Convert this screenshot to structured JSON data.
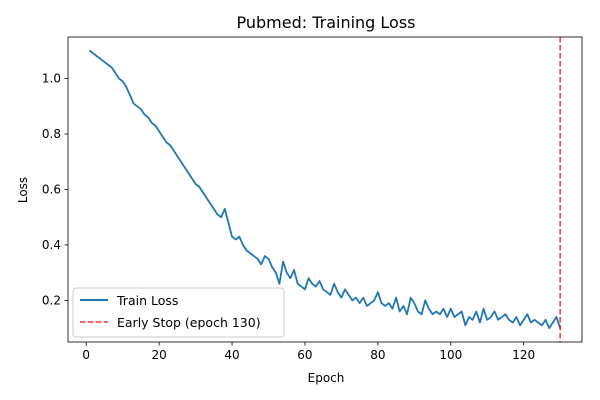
{
  "chart_data": {
    "type": "line",
    "title": "Pubmed: Training Loss",
    "xlabel": "Epoch",
    "ylabel": "Loss",
    "xlim": [
      -5,
      136
    ],
    "ylim": [
      0.05,
      1.15
    ],
    "xticks": [
      0,
      20,
      40,
      60,
      80,
      100,
      120
    ],
    "yticks": [
      0.2,
      0.4,
      0.6,
      0.8,
      1.0
    ],
    "ytick_labels": [
      "0.2",
      "0.4",
      "0.6",
      "0.8",
      "1.0"
    ],
    "grid": false,
    "legend_position": "lower-left",
    "series": [
      {
        "name": "Train Loss",
        "color": "#1f77b4",
        "style": "solid",
        "x": [
          1,
          2,
          3,
          4,
          5,
          6,
          7,
          8,
          9,
          10,
          11,
          12,
          13,
          14,
          15,
          16,
          17,
          18,
          19,
          20,
          21,
          22,
          23,
          24,
          25,
          26,
          27,
          28,
          29,
          30,
          31,
          32,
          33,
          34,
          35,
          36,
          37,
          38,
          39,
          40,
          41,
          42,
          43,
          44,
          45,
          46,
          47,
          48,
          49,
          50,
          51,
          52,
          53,
          54,
          55,
          56,
          57,
          58,
          59,
          60,
          61,
          62,
          63,
          64,
          65,
          66,
          67,
          68,
          69,
          70,
          71,
          72,
          73,
          74,
          75,
          76,
          77,
          78,
          79,
          80,
          81,
          82,
          83,
          84,
          85,
          86,
          87,
          88,
          89,
          90,
          91,
          92,
          93,
          94,
          95,
          96,
          97,
          98,
          99,
          100,
          101,
          102,
          103,
          104,
          105,
          106,
          107,
          108,
          109,
          110,
          111,
          112,
          113,
          114,
          115,
          116,
          117,
          118,
          119,
          120,
          121,
          122,
          123,
          124,
          125,
          126,
          127,
          128,
          129,
          130
        ],
        "values": [
          1.1,
          1.09,
          1.08,
          1.07,
          1.06,
          1.05,
          1.04,
          1.02,
          1.0,
          0.99,
          0.97,
          0.94,
          0.91,
          0.9,
          0.89,
          0.87,
          0.86,
          0.84,
          0.83,
          0.81,
          0.79,
          0.77,
          0.76,
          0.74,
          0.72,
          0.7,
          0.68,
          0.66,
          0.64,
          0.62,
          0.61,
          0.59,
          0.57,
          0.55,
          0.53,
          0.51,
          0.5,
          0.53,
          0.48,
          0.43,
          0.42,
          0.43,
          0.4,
          0.38,
          0.37,
          0.36,
          0.35,
          0.33,
          0.36,
          0.35,
          0.32,
          0.3,
          0.26,
          0.34,
          0.3,
          0.28,
          0.31,
          0.26,
          0.25,
          0.24,
          0.28,
          0.26,
          0.25,
          0.27,
          0.24,
          0.23,
          0.22,
          0.26,
          0.23,
          0.21,
          0.24,
          0.22,
          0.2,
          0.21,
          0.19,
          0.21,
          0.18,
          0.19,
          0.2,
          0.23,
          0.19,
          0.18,
          0.19,
          0.17,
          0.21,
          0.16,
          0.18,
          0.15,
          0.21,
          0.19,
          0.16,
          0.15,
          0.2,
          0.17,
          0.15,
          0.16,
          0.15,
          0.17,
          0.14,
          0.17,
          0.14,
          0.15,
          0.16,
          0.11,
          0.14,
          0.13,
          0.16,
          0.12,
          0.17,
          0.13,
          0.14,
          0.16,
          0.13,
          0.14,
          0.15,
          0.13,
          0.12,
          0.14,
          0.11,
          0.13,
          0.15,
          0.12,
          0.13,
          0.12,
          0.11,
          0.13,
          0.1,
          0.12,
          0.14,
          0.1
        ]
      },
      {
        "name": "Early Stop (epoch 130)",
        "color": "#ff0000",
        "style": "dashed",
        "vline_x": 130
      }
    ]
  }
}
